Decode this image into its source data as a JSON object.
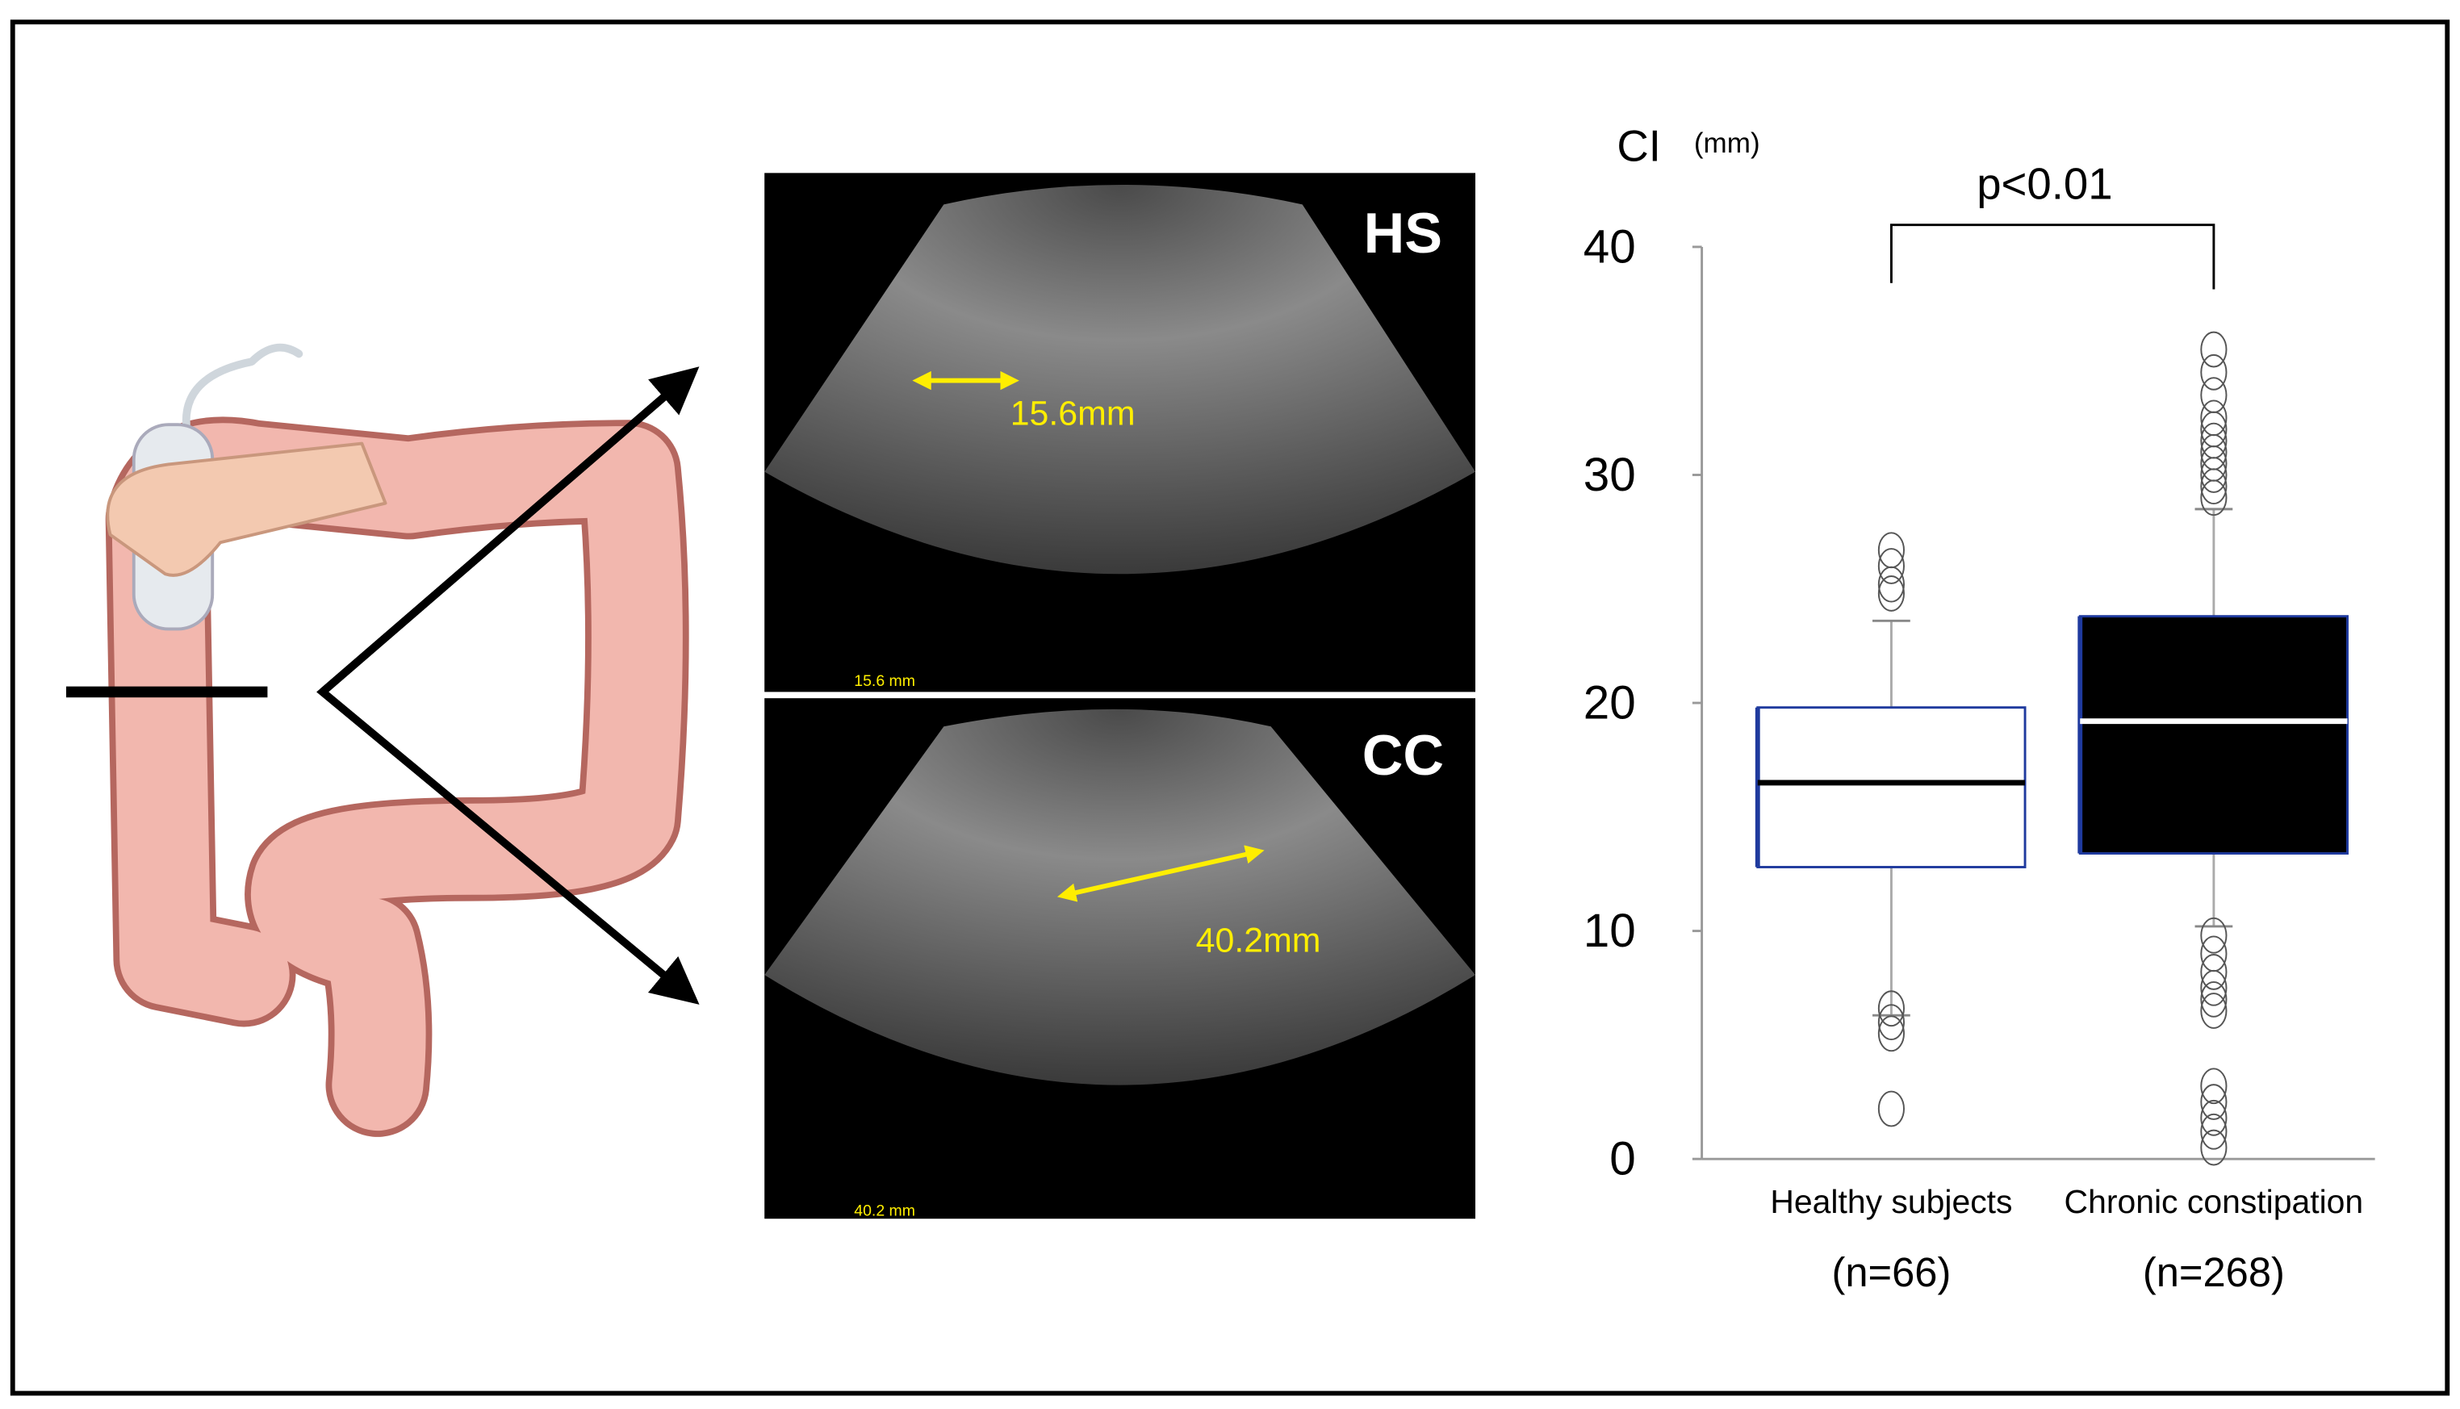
{
  "panels": [
    {
      "label": "HS",
      "measure": "15.6mm",
      "scale_text": "15.6 mm"
    },
    {
      "label": "CC",
      "measure": "40.2mm",
      "scale_text": "40.2 mm"
    }
  ],
  "chart_data": {
    "type": "box",
    "ylabel": "CI",
    "yunit": "(mm)",
    "annotation": "p<0.01",
    "categories": [
      "Healthy subjects",
      "Chronic constipation"
    ],
    "category_notes": [
      "(n=66)",
      "(n=268)"
    ],
    "ylim": [
      0,
      40
    ],
    "yticks": [
      0,
      10,
      20,
      30,
      40
    ],
    "boxes": [
      {
        "whislo": 6.3,
        "q1": 12.8,
        "med": 16.5,
        "q3": 19.8,
        "whishi": 23.6,
        "fliers": [
          26.7,
          26,
          25.2,
          24.8,
          6.6,
          6,
          5.5,
          2.2
        ],
        "color": "#ffffff",
        "edgecolor": "#1f3a9e",
        "median_color": "#000000"
      },
      {
        "whislo": 10.2,
        "q1": 13.4,
        "med": 19.2,
        "q3": 23.8,
        "whishi": 28.5,
        "fliers": [
          35.5,
          34.5,
          33.5,
          32.5,
          32,
          31.5,
          31,
          30.5,
          30,
          29.5,
          29,
          9.8,
          9,
          8.2,
          7.5,
          7,
          6.5,
          3.2,
          2.5,
          1.8,
          1.2,
          0.5
        ],
        "color": "#000000",
        "edgecolor": "#1f3a9e",
        "median_color": "#ffffff"
      }
    ]
  }
}
